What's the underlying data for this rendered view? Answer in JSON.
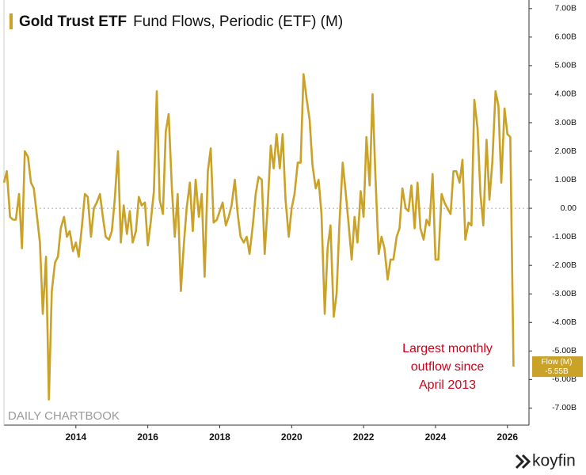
{
  "chart_data": {
    "type": "line",
    "title": "Gold Trust ETF",
    "subtitle": "Fund Flows, Periodic (ETF) (M)",
    "annotation": [
      "Largest monthly",
      "outflow since",
      "April 2013"
    ],
    "watermark": "DAILY CHARTBOOK",
    "brand": "koyfin",
    "zero_line": true,
    "xlim": [
      2012,
      2026.6
    ],
    "xticks": [
      2014,
      2016,
      2018,
      2020,
      2022,
      2024,
      2026
    ],
    "ylim": [
      -7.6,
      7.3
    ],
    "yticks": [
      {
        "value": 7,
        "label": "7.00B"
      },
      {
        "value": 6,
        "label": "6.00B"
      },
      {
        "value": 5,
        "label": "5.00B"
      },
      {
        "value": 4,
        "label": "4.00B"
      },
      {
        "value": 3,
        "label": "3.00B"
      },
      {
        "value": 2,
        "label": "2.00B"
      },
      {
        "value": 1,
        "label": "1.00B"
      },
      {
        "value": 0,
        "label": "0.00"
      },
      {
        "value": -1,
        "label": "-1.00B"
      },
      {
        "value": -2,
        "label": "-2.00B"
      },
      {
        "value": -3,
        "label": "-3.00B"
      },
      {
        "value": -4,
        "label": "-4.00B"
      },
      {
        "value": -5,
        "label": "-5.00B"
      },
      {
        "value": -6,
        "label": "-6.00B"
      },
      {
        "value": -7,
        "label": "-7.00B"
      }
    ],
    "x": [
      2012,
      2012.08,
      2012.17,
      2012.25,
      2012.33,
      2012.42,
      2012.5,
      2012.58,
      2012.67,
      2012.75,
      2012.83,
      2012.92,
      2013,
      2013.08,
      2013.17,
      2013.25,
      2013.33,
      2013.42,
      2013.5,
      2013.58,
      2013.67,
      2013.75,
      2013.83,
      2013.92,
      2014,
      2014.08,
      2014.17,
      2014.25,
      2014.33,
      2014.42,
      2014.5,
      2014.58,
      2014.67,
      2014.75,
      2014.83,
      2014.92,
      2015,
      2015.08,
      2015.17,
      2015.25,
      2015.33,
      2015.42,
      2015.5,
      2015.58,
      2015.67,
      2015.75,
      2015.83,
      2015.92,
      2016,
      2016.08,
      2016.17,
      2016.25,
      2016.33,
      2016.42,
      2016.5,
      2016.58,
      2016.67,
      2016.75,
      2016.83,
      2016.92,
      2017,
      2017.08,
      2017.17,
      2017.25,
      2017.33,
      2017.42,
      2017.5,
      2017.58,
      2017.67,
      2017.75,
      2017.83,
      2017.92,
      2018,
      2018.08,
      2018.17,
      2018.25,
      2018.33,
      2018.42,
      2018.5,
      2018.58,
      2018.67,
      2018.75,
      2018.83,
      2018.92,
      2019,
      2019.08,
      2019.17,
      2019.25,
      2019.33,
      2019.42,
      2019.5,
      2019.58,
      2019.67,
      2019.75,
      2019.83,
      2019.92,
      2020,
      2020.08,
      2020.17,
      2020.25,
      2020.33,
      2020.42,
      2020.5,
      2020.58,
      2020.67,
      2020.75,
      2020.83,
      2020.92,
      2021,
      2021.08,
      2021.17,
      2021.25,
      2021.33,
      2021.42,
      2021.5,
      2021.58,
      2021.67,
      2021.75,
      2021.83,
      2021.92,
      2022,
      2022.08,
      2022.17,
      2022.25,
      2022.33,
      2022.42,
      2022.5,
      2022.58,
      2022.67,
      2022.75,
      2022.83,
      2022.92,
      2023,
      2023.08,
      2023.17,
      2023.25,
      2023.33,
      2023.42,
      2023.5,
      2023.58,
      2023.67,
      2023.75,
      2023.83,
      2023.92,
      2024,
      2024.08,
      2024.17,
      2024.25,
      2024.33,
      2024.42,
      2024.5,
      2024.58,
      2024.67,
      2024.75,
      2024.83,
      2024.92,
      2025,
      2025.08,
      2025.17,
      2025.25,
      2025.33,
      2025.42,
      2025.5,
      2025.58,
      2025.67,
      2025.75,
      2025.83,
      2025.92,
      2026,
      2026.08,
      2026.17
    ],
    "series": [
      {
        "name": "Flow (M)",
        "color": "#c9a227",
        "values": [
          0.9,
          1.3,
          -0.3,
          -0.4,
          -0.4,
          0.5,
          -1.4,
          2.0,
          1.8,
          0.9,
          0.7,
          -0.3,
          -1.2,
          -3.7,
          -1.7,
          -6.7,
          -2.9,
          -1.9,
          -1.7,
          -0.7,
          -0.3,
          -1.0,
          -0.8,
          -1.5,
          -1.2,
          -1.7,
          -0.6,
          0.5,
          0.4,
          -1.0,
          0.0,
          0.2,
          0.5,
          -0.3,
          -1.0,
          -1.1,
          -0.8,
          0.3,
          2.0,
          -1.2,
          0.1,
          -0.9,
          -0.1,
          -1.2,
          -0.8,
          0.4,
          0.1,
          0.2,
          -1.3,
          -0.5,
          0.6,
          4.1,
          0.3,
          -0.2,
          2.7,
          3.3,
          0.7,
          -1.0,
          0.5,
          -2.9,
          -1.3,
          0.0,
          0.9,
          -0.8,
          1.0,
          -0.3,
          0.5,
          -2.4,
          1.3,
          2.1,
          -0.5,
          -0.4,
          -0.1,
          0.2,
          -0.6,
          -0.3,
          0.1,
          1.0,
          -0.2,
          -1.0,
          -1.2,
          -1.0,
          -1.6,
          -0.6,
          0.5,
          1.1,
          1.0,
          -1.6,
          0.0,
          2.2,
          1.4,
          2.6,
          1.4,
          2.6,
          0.3,
          -1.0,
          0.0,
          0.5,
          1.6,
          1.6,
          4.7,
          3.8,
          3.1,
          1.5,
          0.7,
          1.0,
          -0.2,
          -3.7,
          -1.4,
          -0.6,
          -3.8,
          -3.0,
          -0.5,
          1.6,
          0.6,
          -0.5,
          -1.8,
          -0.3,
          -1.2,
          0.6,
          -0.3,
          2.5,
          0.8,
          4.0,
          1.1,
          -1.6,
          -1.0,
          -1.4,
          -2.5,
          -1.8,
          -1.8,
          -1.0,
          -0.7,
          0.7,
          0.0,
          -0.1,
          0.8,
          -0.7,
          0.9,
          -0.7,
          -1.1,
          -0.4,
          -0.6,
          1.2,
          -1.8,
          -1.8,
          0.5,
          0.2,
          0.0,
          -0.2,
          1.3,
          1.3,
          0.9,
          1.7,
          -1.1,
          -0.5,
          -0.6,
          3.8,
          2.8,
          0.5,
          -0.6,
          2.4,
          0.3,
          1.6,
          4.1,
          3.6,
          0.9,
          3.5,
          2.6,
          2.5,
          -5.55
        ],
        "value_labels": [
          null,
          null,
          null,
          null,
          null,
          null,
          null,
          null,
          null,
          null,
          null,
          null,
          null,
          null,
          null,
          null,
          null,
          null,
          null,
          null,
          null,
          null,
          null,
          null,
          null,
          null,
          null,
          null,
          null,
          null,
          null,
          null,
          null,
          null,
          null,
          null,
          null,
          null,
          null,
          null,
          null,
          null,
          null,
          null,
          null,
          null,
          null,
          null,
          null,
          null,
          null,
          null,
          null,
          null,
          null,
          null,
          null,
          null,
          null,
          null,
          null,
          null,
          null,
          null,
          null,
          null,
          null,
          null,
          null,
          null,
          null,
          null,
          null,
          null,
          null,
          null,
          null,
          null,
          null,
          null,
          null,
          null,
          null,
          null,
          null,
          null,
          null,
          null,
          null,
          null,
          null,
          null,
          null,
          null,
          null,
          null,
          null,
          null,
          null,
          null,
          null,
          null,
          null,
          null,
          null,
          null,
          null,
          null,
          null,
          null,
          null,
          null,
          null,
          null,
          null,
          null,
          null,
          null,
          null,
          null,
          null,
          null,
          null,
          null,
          null,
          null,
          null,
          null,
          null,
          null,
          null,
          null,
          null,
          null,
          null,
          null,
          null,
          null,
          null,
          null,
          null,
          null,
          null,
          null,
          null,
          null,
          null,
          null,
          null,
          null,
          null,
          null,
          null,
          null,
          null,
          null,
          null,
          null,
          null,
          null,
          null,
          null,
          null,
          null,
          null,
          null,
          null,
          null,
          null,
          null,
          "-5.55B"
        ]
      }
    ]
  }
}
